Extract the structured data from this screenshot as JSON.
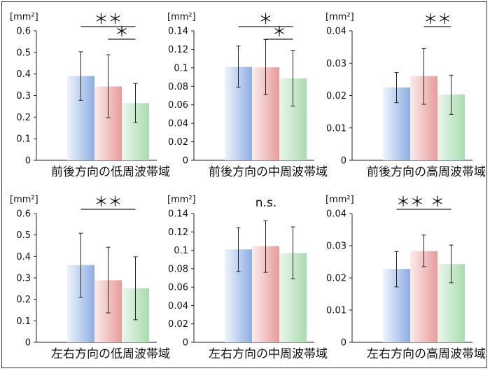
{
  "colors": {
    "blue": "#8eaee3",
    "red": "#e99a9a",
    "green": "#a9dcb0"
  },
  "chart_data": [
    {
      "type": "bar",
      "title": "前後方向の低周波帯域",
      "unit": "[mm²]",
      "yticks": [
        "0",
        "0.1",
        "0.2",
        "0.3",
        "0.4",
        "0.5",
        "0.6"
      ],
      "ylim": [
        0,
        0.6
      ],
      "values": [
        0.39,
        0.342,
        0.265
      ],
      "err_low": [
        0.278,
        0.197,
        0.175
      ],
      "err_high": [
        0.503,
        0.489,
        0.356
      ],
      "sig": [
        {
          "from": 0,
          "to": 2,
          "label": "＊＊",
          "level": 0
        },
        {
          "from": 1,
          "to": 2,
          "label": "＊",
          "level": 1
        }
      ]
    },
    {
      "type": "bar",
      "title": "前後方向の中周波帯域",
      "unit": "[mm²]",
      "yticks": [
        "0",
        "0.02",
        "0.04",
        "0.06",
        "0.08",
        "0.1",
        "0.12",
        "0.14"
      ],
      "ylim": [
        0,
        0.14
      ],
      "values": [
        0.101,
        0.1005,
        0.0885
      ],
      "err_low": [
        0.079,
        0.071,
        0.0585
      ],
      "err_high": [
        0.1235,
        0.1305,
        0.1185
      ],
      "sig": [
        {
          "from": 0,
          "to": 2,
          "label": "＊",
          "level": 0
        },
        {
          "from": 1,
          "to": 2,
          "label": "＊",
          "level": 1
        }
      ]
    },
    {
      "type": "bar",
      "title": "前後方向の高周波帯域",
      "unit": "[mm²]",
      "yticks": [
        "0",
        "0.01",
        "0.02",
        "0.03",
        "0.04"
      ],
      "ylim": [
        0,
        0.04
      ],
      "values": [
        0.0225,
        0.026,
        0.0203
      ],
      "err_low": [
        0.0178,
        0.0173,
        0.0142
      ],
      "err_high": [
        0.0271,
        0.0345,
        0.0263
      ],
      "sig": [
        {
          "from": 1,
          "to": 2,
          "label": "＊＊",
          "level": 0
        }
      ]
    },
    {
      "type": "bar",
      "title": "左右方向の低周波帯域",
      "unit": "[mm²]",
      "yticks": [
        "0",
        "0.1",
        "0.2",
        "0.3",
        "0.4",
        "0.5",
        "0.6"
      ],
      "ylim": [
        0,
        0.6
      ],
      "values": [
        0.36,
        0.289,
        0.252
      ],
      "err_low": [
        0.21,
        0.137,
        0.105
      ],
      "err_high": [
        0.508,
        0.443,
        0.398
      ],
      "sig": [
        {
          "from": 0,
          "to": 2,
          "label": "＊＊",
          "level": 0
        }
      ]
    },
    {
      "type": "bar",
      "title": "左右方向の中周波帯域",
      "unit": "[mm²]",
      "yticks": [
        "0",
        "0.02",
        "0.04",
        "0.06",
        "0.08",
        "0.1",
        "0.12",
        "0.14"
      ],
      "ylim": [
        0,
        0.14
      ],
      "values": [
        0.101,
        0.1045,
        0.097
      ],
      "err_low": [
        0.077,
        0.076,
        0.069
      ],
      "err_high": [
        0.1245,
        0.132,
        0.1255
      ],
      "sig": [],
      "note": "n.s."
    },
    {
      "type": "bar",
      "title": "左右方向の高周波帯域",
      "unit": "[mm²]",
      "yticks": [
        "0",
        "0.01",
        "0.02",
        "0.03",
        "0.04"
      ],
      "ylim": [
        0,
        0.04
      ],
      "values": [
        0.0228,
        0.0283,
        0.0243
      ],
      "err_low": [
        0.0172,
        0.0235,
        0.0185
      ],
      "err_high": [
        0.0282,
        0.0333,
        0.0302
      ],
      "sig": [
        {
          "from": 0,
          "to": 1,
          "label": "＊＊",
          "level": 0
        },
        {
          "from": 1,
          "to": 2,
          "label": "＊",
          "level": 0
        }
      ]
    }
  ]
}
